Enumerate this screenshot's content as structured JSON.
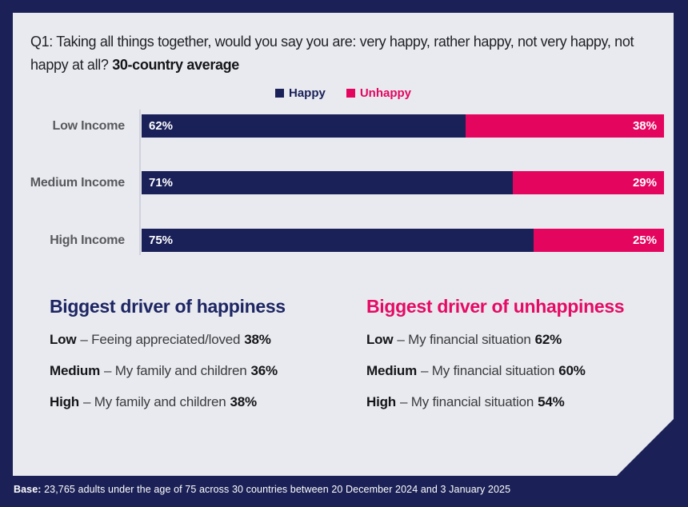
{
  "colors": {
    "background": "#1b2156",
    "card": "#e8eaef",
    "happy": "#1a2158",
    "unhappy": "#e4055f",
    "heading_happy": "#1d2563",
    "heading_unhappy": "#e60a64",
    "category_label": "#58595d",
    "bar_value_text": "#ffffff"
  },
  "title": {
    "regular": "Q1: Taking all things together, would you say you are: very happy, rather happy, not very happy, not happy at all? ",
    "bold": "30-country average"
  },
  "legend": {
    "items": [
      {
        "label": "Happy",
        "color": "#1a2158"
      },
      {
        "label": "Unhappy",
        "color": "#e4055f"
      }
    ]
  },
  "chart_data": {
    "type": "bar",
    "orientation": "horizontal",
    "stacked": true,
    "categories": [
      "Low Income",
      "Medium Income",
      "High Income"
    ],
    "series": [
      {
        "name": "Happy",
        "values": [
          62,
          71,
          75
        ]
      },
      {
        "name": "Unhappy",
        "values": [
          38,
          29,
          25
        ]
      }
    ],
    "value_labels": [
      [
        "62%",
        "38%"
      ],
      [
        "71%",
        "29%"
      ],
      [
        "75%",
        "25%"
      ]
    ],
    "xlim": [
      0,
      100
    ],
    "grid": false,
    "legend_position": "top-center"
  },
  "drivers": {
    "happiness": {
      "title": "Biggest driver of happiness",
      "items": [
        {
          "level": "Low",
          "text": "– Feeing appreciated/loved",
          "value": "38%"
        },
        {
          "level": "Medium",
          "text": "– My family and children",
          "value": "36%"
        },
        {
          "level": "High",
          "text": "– My family and children",
          "value": "38%"
        }
      ]
    },
    "unhappiness": {
      "title": "Biggest driver of unhappiness",
      "items": [
        {
          "level": "Low",
          "text": "– My financial situation",
          "value": "62%"
        },
        {
          "level": "Medium",
          "text": "– My financial situation",
          "value": "60%"
        },
        {
          "level": "High",
          "text": "– My financial situation",
          "value": "54%"
        }
      ]
    }
  },
  "footer": {
    "bold": "Base:",
    "text": " 23,765 adults under the age of 75 across 30 countries between 20 December 2024 and 3 January 2025"
  }
}
